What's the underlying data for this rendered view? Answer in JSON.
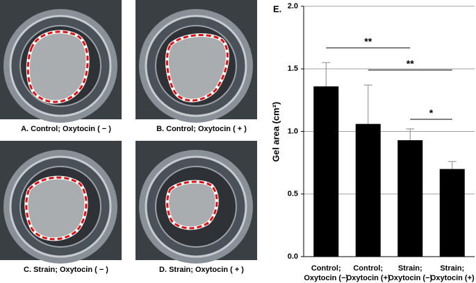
{
  "panels": [
    {
      "caption": "A. Control; Oxytocin ( − )"
    },
    {
      "caption": "B. Control; Oxytocin ( + )"
    },
    {
      "caption": "C. Strain; Oxytocin ( − )"
    },
    {
      "caption": "D. Strain; Oxytocin ( + )"
    }
  ],
  "chart_data": {
    "type": "bar",
    "title": "E.",
    "y_label": "Gel area (cm²)",
    "categories": [
      [
        "Control;",
        "Oxytocin (−)"
      ],
      [
        "Control;",
        "Oxytocin (+)"
      ],
      [
        "Strain;",
        "Oxytocin (−)"
      ],
      [
        "Strain;",
        "Oxytocin (+)"
      ]
    ],
    "values": [
      1.36,
      1.06,
      0.93,
      0.7
    ],
    "errors": [
      0.19,
      0.31,
      0.09,
      0.06
    ],
    "color": "#000000",
    "ylim": [
      0,
      2
    ],
    "yticks": [
      {
        "value": 0,
        "label": "0.0"
      },
      {
        "value": 0.5,
        "label": "0.5"
      },
      {
        "value": 1,
        "label": "1.0"
      },
      {
        "value": 1.5,
        "label": "1.5"
      },
      {
        "value": 2,
        "label": "2.0"
      }
    ],
    "grid": true,
    "annotations": [
      {
        "from": 0,
        "to": 2,
        "label": "**"
      },
      {
        "from": 1,
        "to": 3,
        "label": "**"
      },
      {
        "from": 2,
        "to": 3,
        "label": "*"
      }
    ]
  }
}
